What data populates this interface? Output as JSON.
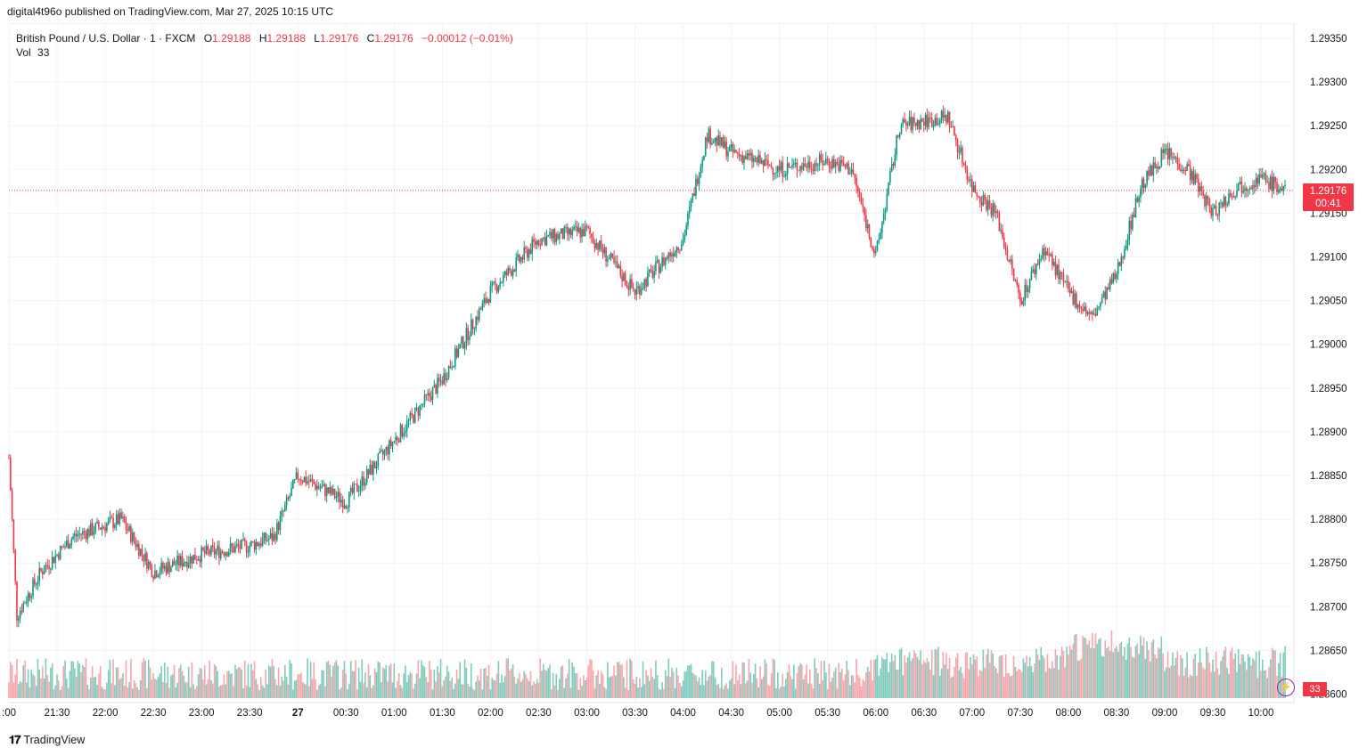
{
  "publish_line": "digital4t96o published on TradingView.com, Mar 27, 2025 10:15 UTC",
  "legend": {
    "symbol": "British Pound / U.S. Dollar · 1 · FXCM",
    "o_label": "O",
    "o_value": "1.29188",
    "h_label": "H",
    "h_value": "1.29188",
    "l_label": "L",
    "l_value": "1.29176",
    "c_label": "C",
    "c_value": "1.29176",
    "change": "−0.00012 (−0.01%)"
  },
  "vol_legend": {
    "label": "Vol",
    "value": "33"
  },
  "last_price_tag": {
    "price": "1.29176",
    "countdown": "00:41"
  },
  "vol_tag": "33",
  "footer_brand": "TradingView",
  "colors": {
    "up": "#089981",
    "down": "#f23645",
    "vol_up": "#7fcbbd",
    "vol_down": "#f7a6ac",
    "grid": "#f0f3fa"
  },
  "icons": [
    "lightning-icon",
    "tradingview-logo-icon"
  ],
  "chart_data": {
    "type": "candlestick",
    "title": "British Pound / U.S. Dollar · 1 · FXCM",
    "ylim": [
      1.286,
      1.2937
    ],
    "y_ticks": [
      "1.29350",
      "1.29300",
      "1.29250",
      "1.29200",
      "1.29150",
      "1.29100",
      "1.29050",
      "1.29000",
      "1.28950",
      "1.28900",
      "1.28850",
      "1.28800",
      "1.28750",
      "1.28700",
      "1.28650",
      "1.28600"
    ],
    "x_ticks": [
      ":00",
      "21:30",
      "22:00",
      "22:30",
      "23:00",
      "23:30",
      "27",
      "00:30",
      "01:00",
      "01:30",
      "02:00",
      "02:30",
      "03:00",
      "03:30",
      "04:00",
      "04:30",
      "05:00",
      "05:30",
      "06:00",
      "06:30",
      "07:00",
      "07:30",
      "08:00",
      "08:30",
      "09:00",
      "09:30",
      "10:00"
    ],
    "interval_minutes": 1,
    "approx_close_path": [
      {
        "t": "21:00",
        "close": 1.2887
      },
      {
        "t": "21:05",
        "close": 1.2869
      },
      {
        "t": "21:20",
        "close": 1.2874
      },
      {
        "t": "21:40",
        "close": 1.2878
      },
      {
        "t": "22:10",
        "close": 1.288
      },
      {
        "t": "22:30",
        "close": 1.2874
      },
      {
        "t": "23:00",
        "close": 1.2876
      },
      {
        "t": "23:30",
        "close": 1.2877
      },
      {
        "t": "23:45",
        "close": 1.2878
      },
      {
        "t": "00:00",
        "close": 1.2885
      },
      {
        "t": "00:30",
        "close": 1.2882
      },
      {
        "t": "01:00",
        "close": 1.2889
      },
      {
        "t": "01:30",
        "close": 1.2896
      },
      {
        "t": "02:00",
        "close": 1.2906
      },
      {
        "t": "02:30",
        "close": 1.2912
      },
      {
        "t": "03:00",
        "close": 1.2913
      },
      {
        "t": "03:30",
        "close": 1.2906
      },
      {
        "t": "04:00",
        "close": 1.2912
      },
      {
        "t": "04:15",
        "close": 1.2924
      },
      {
        "t": "04:30",
        "close": 1.2922
      },
      {
        "t": "05:00",
        "close": 1.292
      },
      {
        "t": "05:30",
        "close": 1.2921
      },
      {
        "t": "05:45",
        "close": 1.292
      },
      {
        "t": "06:00",
        "close": 1.291
      },
      {
        "t": "06:15",
        "close": 1.2925
      },
      {
        "t": "06:45",
        "close": 1.2926
      },
      {
        "t": "07:00",
        "close": 1.2918
      },
      {
        "t": "07:15",
        "close": 1.2915
      },
      {
        "t": "07:30",
        "close": 1.2905
      },
      {
        "t": "07:45",
        "close": 1.2911
      },
      {
        "t": "08:00",
        "close": 1.2906
      },
      {
        "t": "08:15",
        "close": 1.2903
      },
      {
        "t": "08:30",
        "close": 1.2908
      },
      {
        "t": "08:45",
        "close": 1.2918
      },
      {
        "t": "09:00",
        "close": 1.2922
      },
      {
        "t": "09:15",
        "close": 1.292
      },
      {
        "t": "09:30",
        "close": 1.2915
      },
      {
        "t": "09:45",
        "close": 1.2918
      },
      {
        "t": "10:00",
        "close": 1.2919
      },
      {
        "t": "10:15",
        "close": 1.29176
      }
    ],
    "volume_last": 33
  }
}
